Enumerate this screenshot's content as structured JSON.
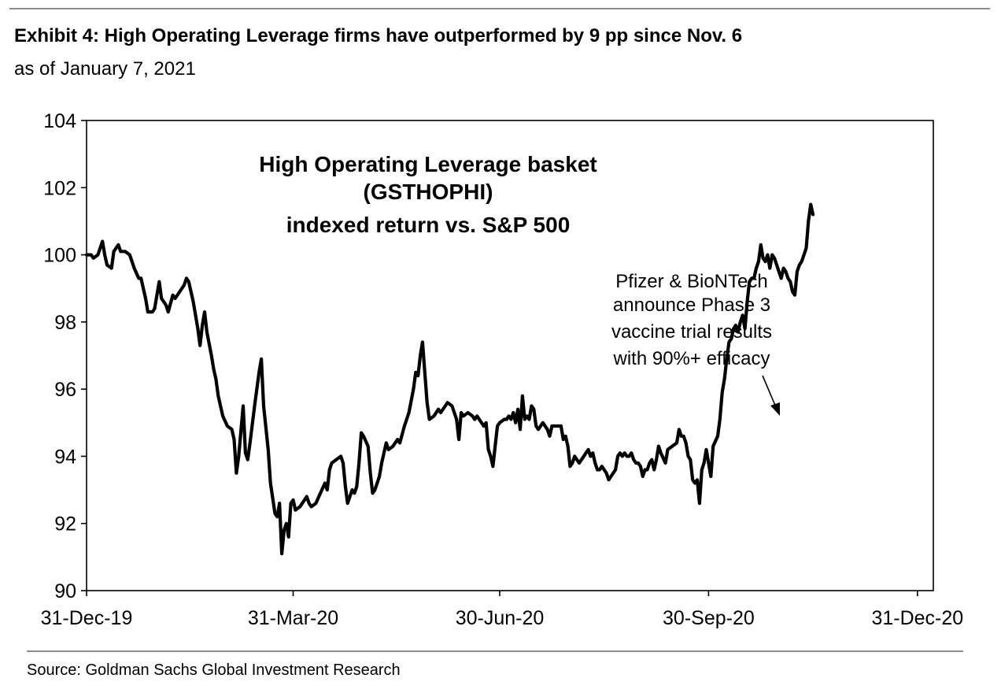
{
  "header": {
    "title": "Exhibit 4: High Operating Leverage firms have outperformed by 9 pp since Nov. 6",
    "subtitle": "as of January 7, 2021"
  },
  "footer": {
    "source": "Source: Goldman Sachs Global Investment Research"
  },
  "chart_data": {
    "type": "line",
    "title_lines": [
      "High Operating Leverage basket",
      "(GSTHOPHI)",
      "indexed return vs. S&P 500"
    ],
    "xlabel": "",
    "ylabel": "",
    "ylim": [
      90,
      104
    ],
    "yticks": [
      90,
      92,
      94,
      96,
      98,
      100,
      102,
      104
    ],
    "ytick_labels": [
      "90",
      "92",
      "94",
      "96",
      "98",
      "100",
      "102",
      "104"
    ],
    "xlim_days": [
      0,
      373
    ],
    "xticks_days": [
      0,
      91,
      182,
      274,
      366
    ],
    "xtick_labels": [
      "31-Dec-19",
      "31-Mar-20",
      "30-Jun-20",
      "30-Sep-20",
      "31-Dec-20"
    ],
    "annotation": {
      "lines": [
        "Pfizer & BioNTech",
        "announce Phase 3",
        "vaccine trial results",
        "with 90%+ efficacy"
      ],
      "target_day": 311,
      "target_value": 94.6
    },
    "series": [
      {
        "name": "High Operating Leverage basket (GSTHOPHI) indexed return vs. S&P 500",
        "color": "#000000",
        "points": [
          [
            0,
            100.0
          ],
          [
            2,
            100.0
          ],
          [
            3,
            99.9
          ],
          [
            5,
            100.0
          ],
          [
            7,
            100.4
          ],
          [
            8,
            100.0
          ],
          [
            9,
            99.7
          ],
          [
            11,
            99.6
          ],
          [
            12,
            100.1
          ],
          [
            14,
            100.3
          ],
          [
            15,
            100.1
          ],
          [
            17,
            100.1
          ],
          [
            19,
            100.0
          ],
          [
            21,
            99.6
          ],
          [
            23,
            99.3
          ],
          [
            24,
            99.3
          ],
          [
            26,
            98.7
          ],
          [
            27,
            98.3
          ],
          [
            29,
            98.3
          ],
          [
            30,
            98.4
          ],
          [
            31,
            98.8
          ],
          [
            32,
            99.2
          ],
          [
            33,
            98.7
          ],
          [
            35,
            98.5
          ],
          [
            36,
            98.3
          ],
          [
            38,
            98.8
          ],
          [
            39,
            98.7
          ],
          [
            41,
            98.9
          ],
          [
            43,
            99.1
          ],
          [
            44,
            99.3
          ],
          [
            45,
            99.2
          ],
          [
            46,
            98.9
          ],
          [
            47,
            98.6
          ],
          [
            48,
            98.2
          ],
          [
            49,
            97.8
          ],
          [
            50,
            97.3
          ],
          [
            51,
            97.9
          ],
          [
            52,
            98.3
          ],
          [
            53,
            97.7
          ],
          [
            55,
            97.0
          ],
          [
            56,
            96.6
          ],
          [
            57,
            96.3
          ],
          [
            58,
            95.8
          ],
          [
            59,
            95.5
          ],
          [
            60,
            95.2
          ],
          [
            62,
            94.9
          ],
          [
            64,
            94.8
          ],
          [
            65,
            94.5
          ],
          [
            66,
            93.5
          ],
          [
            67,
            94.0
          ],
          [
            69,
            95.5
          ],
          [
            70,
            94.1
          ],
          [
            71,
            93.9
          ],
          [
            72,
            94.4
          ],
          [
            74,
            95.5
          ],
          [
            76,
            96.5
          ],
          [
            77,
            96.9
          ],
          [
            78,
            95.5
          ],
          [
            80,
            94.2
          ],
          [
            81,
            93.2
          ],
          [
            83,
            92.3
          ],
          [
            84,
            92.2
          ],
          [
            85,
            92.6
          ],
          [
            86,
            91.1
          ],
          [
            87,
            91.8
          ],
          [
            88,
            92.0
          ],
          [
            89,
            91.6
          ],
          [
            90,
            92.6
          ],
          [
            91,
            92.7
          ],
          [
            92,
            92.4
          ],
          [
            94,
            92.5
          ],
          [
            96,
            92.7
          ],
          [
            97,
            92.8
          ],
          [
            98,
            92.6
          ],
          [
            99,
            92.5
          ],
          [
            101,
            92.6
          ],
          [
            103,
            92.9
          ],
          [
            105,
            93.2
          ],
          [
            106,
            93.0
          ],
          [
            107,
            93.6
          ],
          [
            108,
            93.8
          ],
          [
            110,
            93.9
          ],
          [
            112,
            94.0
          ],
          [
            113,
            93.8
          ],
          [
            114,
            93.1
          ],
          [
            115,
            92.6
          ],
          [
            117,
            93.0
          ],
          [
            118,
            92.9
          ],
          [
            119,
            93.1
          ],
          [
            120,
            93.8
          ],
          [
            121,
            94.7
          ],
          [
            122,
            94.6
          ],
          [
            124,
            94.3
          ],
          [
            125,
            93.5
          ],
          [
            126,
            92.9
          ],
          [
            127,
            93.0
          ],
          [
            129,
            93.4
          ],
          [
            130,
            93.8
          ],
          [
            131,
            94.1
          ],
          [
            132,
            94.4
          ],
          [
            133,
            94.2
          ],
          [
            135,
            94.3
          ],
          [
            137,
            94.5
          ],
          [
            138,
            94.4
          ],
          [
            140,
            94.9
          ],
          [
            142,
            95.3
          ],
          [
            144,
            96.0
          ],
          [
            145,
            96.5
          ],
          [
            146,
            96.4
          ],
          [
            147,
            97.0
          ],
          [
            148,
            97.4
          ],
          [
            149,
            96.5
          ],
          [
            150,
            95.6
          ],
          [
            151,
            95.1
          ],
          [
            153,
            95.2
          ],
          [
            155,
            95.4
          ],
          [
            156,
            95.3
          ],
          [
            158,
            95.5
          ],
          [
            159,
            95.6
          ],
          [
            161,
            95.5
          ],
          [
            162,
            95.3
          ],
          [
            163,
            95.1
          ],
          [
            164,
            94.5
          ],
          [
            165,
            95.3
          ],
          [
            166,
            95.2
          ],
          [
            168,
            95.3
          ],
          [
            170,
            95.2
          ],
          [
            171,
            95.1
          ],
          [
            172,
            95.2
          ],
          [
            174,
            95.0
          ],
          [
            175,
            94.9
          ],
          [
            176,
            95.0
          ],
          [
            177,
            94.2
          ],
          [
            178,
            94.0
          ],
          [
            179,
            93.7
          ],
          [
            180,
            94.3
          ],
          [
            181,
            94.9
          ],
          [
            182,
            95.0
          ],
          [
            184,
            95.1
          ],
          [
            185,
            95.1
          ],
          [
            186,
            95.2
          ],
          [
            187,
            95.1
          ],
          [
            188,
            95.3
          ],
          [
            189,
            95.0
          ],
          [
            190,
            95.4
          ],
          [
            191,
            94.8
          ],
          [
            192,
            95.8
          ],
          [
            193,
            95.1
          ],
          [
            194,
            95.2
          ],
          [
            195,
            95.1
          ],
          [
            196,
            95.5
          ],
          [
            197,
            95.4
          ],
          [
            198,
            94.9
          ],
          [
            199,
            94.8
          ],
          [
            201,
            95.0
          ],
          [
            203,
            94.8
          ],
          [
            204,
            94.6
          ],
          [
            205,
            94.9
          ],
          [
            207,
            94.9
          ],
          [
            209,
            94.9
          ],
          [
            210,
            94.5
          ],
          [
            211,
            94.6
          ],
          [
            212,
            94.3
          ],
          [
            213,
            93.7
          ],
          [
            214,
            93.8
          ],
          [
            215,
            94.0
          ],
          [
            216,
            93.9
          ],
          [
            217,
            93.8
          ],
          [
            219,
            94.0
          ],
          [
            220,
            94.1
          ],
          [
            221,
            94.2
          ],
          [
            222,
            94.0
          ],
          [
            223,
            94.1
          ],
          [
            224,
            93.8
          ],
          [
            225,
            93.6
          ],
          [
            226,
            93.6
          ],
          [
            227,
            93.7
          ],
          [
            228,
            93.6
          ],
          [
            229,
            93.5
          ],
          [
            230,
            93.3
          ],
          [
            231,
            93.4
          ],
          [
            233,
            93.6
          ],
          [
            234,
            94.0
          ],
          [
            235,
            94.1
          ],
          [
            236,
            94.0
          ],
          [
            237,
            94.1
          ],
          [
            238,
            94.0
          ],
          [
            239,
            94.0
          ],
          [
            240,
            94.1
          ],
          [
            241,
            93.9
          ],
          [
            242,
            93.8
          ],
          [
            243,
            93.8
          ],
          [
            244,
            93.7
          ],
          [
            245,
            93.4
          ],
          [
            246,
            93.6
          ],
          [
            247,
            93.6
          ],
          [
            248,
            93.8
          ],
          [
            249,
            93.9
          ],
          [
            250,
            93.6
          ],
          [
            251,
            93.9
          ],
          [
            252,
            94.3
          ],
          [
            253,
            94.1
          ],
          [
            255,
            93.8
          ],
          [
            256,
            94.2
          ],
          [
            258,
            94.3
          ],
          [
            260,
            94.4
          ],
          [
            261,
            94.8
          ],
          [
            262,
            94.6
          ],
          [
            263,
            94.6
          ],
          [
            264,
            94.4
          ],
          [
            265,
            94.0
          ],
          [
            266,
            93.9
          ],
          [
            267,
            93.3
          ],
          [
            268,
            93.2
          ],
          [
            269,
            93.3
          ],
          [
            270,
            92.6
          ],
          [
            271,
            93.6
          ],
          [
            272,
            93.8
          ],
          [
            273,
            94.2
          ],
          [
            274,
            93.8
          ],
          [
            275,
            93.4
          ],
          [
            276,
            94.3
          ],
          [
            278,
            94.6
          ],
          [
            279,
            95.1
          ],
          [
            280,
            95.9
          ],
          [
            281,
            96.3
          ],
          [
            282,
            96.9
          ],
          [
            283,
            97.4
          ],
          [
            284,
            97.5
          ],
          [
            285,
            97.8
          ],
          [
            286,
            97.9
          ],
          [
            287,
            97.7
          ],
          [
            288,
            98.0
          ],
          [
            289,
            98.2
          ],
          [
            290,
            97.8
          ],
          [
            291,
            98.6
          ],
          [
            292,
            99.2
          ],
          [
            293,
            99.3
          ],
          [
            294,
            99.3
          ],
          [
            295,
            99.6
          ],
          [
            296,
            99.8
          ],
          [
            297,
            100.3
          ],
          [
            298,
            99.9
          ],
          [
            299,
            99.8
          ],
          [
            300,
            100.0
          ],
          [
            301,
            99.6
          ],
          [
            302,
            100.0
          ],
          [
            303,
            99.9
          ],
          [
            304,
            99.7
          ],
          [
            305,
            99.5
          ],
          [
            306,
            99.3
          ],
          [
            307,
            99.6
          ],
          [
            308,
            99.5
          ],
          [
            309,
            99.3
          ],
          [
            310,
            99.2
          ],
          [
            311,
            98.9
          ],
          [
            312,
            98.8
          ],
          [
            313,
            99.5
          ],
          [
            314,
            99.7
          ],
          [
            315,
            99.8
          ],
          [
            316,
            100.0
          ],
          [
            317,
            100.2
          ],
          [
            318,
            101.0
          ],
          [
            319,
            101.5
          ],
          [
            320,
            101.2
          ]
        ]
      }
    ]
  }
}
